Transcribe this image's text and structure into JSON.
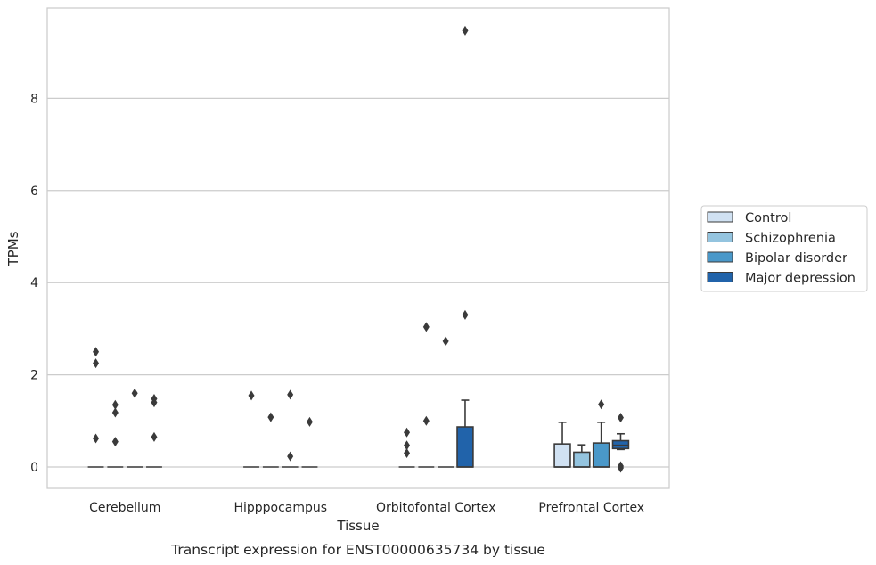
{
  "chart_data": {
    "type": "box",
    "caption": "Transcript expression for ENST00000635734 by tissue",
    "xlabel": "Tissue",
    "ylabel": "TPMs",
    "ylim": [
      -0.45,
      10.0
    ],
    "yticks": [
      0,
      2,
      4,
      6,
      8
    ],
    "grid": true,
    "legend_position": "right",
    "categories": [
      "Cerebellum",
      "Hipppocampus",
      "Orbitofontal Cortex",
      "Prefrontal Cortex"
    ],
    "series": [
      {
        "name": "Control",
        "color": "#d0e1f2",
        "boxes": [
          {
            "q1": 0,
            "median": 0,
            "q3": 0,
            "whisker_low": 0,
            "whisker_high": 0,
            "outliers": [
              2.5,
              2.25,
              0.62
            ]
          },
          {
            "q1": 0,
            "median": 0,
            "q3": 0,
            "whisker_low": 0,
            "whisker_high": 0,
            "outliers": [
              1.55
            ]
          },
          {
            "q1": 0,
            "median": 0,
            "q3": 0,
            "whisker_low": 0,
            "whisker_high": 0,
            "outliers": [
              0.75,
              0.47,
              0.3
            ]
          },
          {
            "q1": 0,
            "median": 0,
            "q3": 0.5,
            "whisker_low": 0,
            "whisker_high": 0.97,
            "outliers": []
          }
        ]
      },
      {
        "name": "Schizophrenia",
        "color": "#94c4df",
        "boxes": [
          {
            "q1": 0,
            "median": 0,
            "q3": 0,
            "whisker_low": 0,
            "whisker_high": 0,
            "outliers": [
              1.35,
              1.18,
              0.55
            ]
          },
          {
            "q1": 0,
            "median": 0,
            "q3": 0,
            "whisker_low": 0,
            "whisker_high": 0,
            "outliers": [
              1.08
            ]
          },
          {
            "q1": 0,
            "median": 0,
            "q3": 0,
            "whisker_low": 0,
            "whisker_high": 0,
            "outliers": [
              1.0,
              3.04
            ]
          },
          {
            "q1": 0,
            "median": 0,
            "q3": 0.32,
            "whisker_low": 0,
            "whisker_high": 0.48,
            "outliers": []
          }
        ]
      },
      {
        "name": "Bipolar disorder",
        "color": "#4a98c9",
        "boxes": [
          {
            "q1": 0,
            "median": 0,
            "q3": 0,
            "whisker_low": 0,
            "whisker_high": 0,
            "outliers": [
              1.6
            ]
          },
          {
            "q1": 0,
            "median": 0,
            "q3": 0,
            "whisker_low": 0,
            "whisker_high": 0,
            "outliers": [
              1.57,
              0.23
            ]
          },
          {
            "q1": 0,
            "median": 0,
            "q3": 0,
            "whisker_low": 0,
            "whisker_high": 0,
            "outliers": [
              2.73
            ]
          },
          {
            "q1": 0,
            "median": 0,
            "q3": 0.52,
            "whisker_low": 0,
            "whisker_high": 0.97,
            "outliers": [
              1.36
            ]
          }
        ]
      },
      {
        "name": "Major depression",
        "color": "#2163aa",
        "boxes": [
          {
            "q1": 0,
            "median": 0,
            "q3": 0,
            "whisker_low": 0,
            "whisker_high": 0,
            "outliers": [
              1.48,
              1.4,
              0.65
            ]
          },
          {
            "q1": 0,
            "median": 0,
            "q3": 0,
            "whisker_low": 0,
            "whisker_high": 0,
            "outliers": [
              0.98
            ]
          },
          {
            "q1": 0,
            "median": 0,
            "q3": 0.87,
            "whisker_low": 0,
            "whisker_high": 1.45,
            "outliers": [
              3.3,
              9.47
            ]
          },
          {
            "q1": 0.4,
            "median": 0.47,
            "q3": 0.57,
            "whisker_low": 0.38,
            "whisker_high": 0.72,
            "outliers": [
              1.07,
              0.02,
              -0.02
            ]
          }
        ]
      }
    ]
  }
}
